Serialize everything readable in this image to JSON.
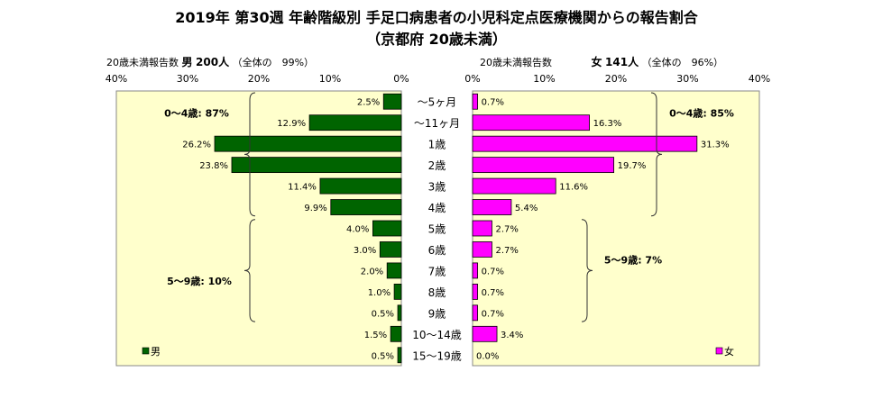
{
  "title": "2019年 第30週 年齢階級別 手足口病患者の小児科定点医療機関からの報告割合",
  "subtitle": "（京都府 20歳未満）",
  "male": {
    "header_prefix": "20歳未満報告数",
    "sex": "男",
    "count": "200人",
    "share_note": "（全体の　99%）",
    "legend": "男",
    "color": "#006400",
    "group_a": "0～4歳: 87%",
    "group_b": "5～9歳: 10%"
  },
  "female": {
    "header_prefix": "20歳未満報告数",
    "sex": "女",
    "count": "141人",
    "share_note": "（全体の　96%）",
    "legend": "女",
    "color": "#ff00ff",
    "group_a": "0～4歳: 85%",
    "group_b": "5～9歳: 7%"
  },
  "chart_data": {
    "type": "bar",
    "orientation": "horizontal-population-pyramid",
    "categories": [
      "～5ヶ月",
      "～11ヶ月",
      "1歳",
      "2歳",
      "3歳",
      "4歳",
      "5歳",
      "6歳",
      "7歳",
      "8歳",
      "9歳",
      "10～14歳",
      "15～19歳"
    ],
    "unit": "%",
    "xlim": [
      0,
      40
    ],
    "left_ticks": [
      "40%",
      "30%",
      "20%",
      "10%",
      "0%"
    ],
    "right_ticks": [
      "0%",
      "10%",
      "20%",
      "30%",
      "40%"
    ],
    "series": [
      {
        "name": "男",
        "side": "left",
        "values": [
          2.5,
          12.9,
          26.2,
          23.8,
          11.4,
          9.9,
          4.0,
          3.0,
          2.0,
          1.0,
          0.5,
          1.5,
          0.5
        ],
        "labels": [
          "2.5%",
          "12.9%",
          "26.2%",
          "23.8%",
          "11.4%",
          "9.9%",
          "4.0%",
          "3.0%",
          "2.0%",
          "1.0%",
          "0.5%",
          "1.5%",
          "0.5%"
        ]
      },
      {
        "name": "女",
        "side": "right",
        "values": [
          0.7,
          16.3,
          31.3,
          19.7,
          11.6,
          5.4,
          2.7,
          2.7,
          0.7,
          0.7,
          0.7,
          3.4,
          0.0
        ],
        "labels": [
          "0.7%",
          "16.3%",
          "31.3%",
          "19.7%",
          "11.6%",
          "5.4%",
          "2.7%",
          "2.7%",
          "0.7%",
          "0.7%",
          "0.7%",
          "3.4%",
          "0.0%"
        ]
      }
    ],
    "plot_background": "#ffffcc",
    "grid": false,
    "legend": "bottom-left / bottom-right"
  }
}
